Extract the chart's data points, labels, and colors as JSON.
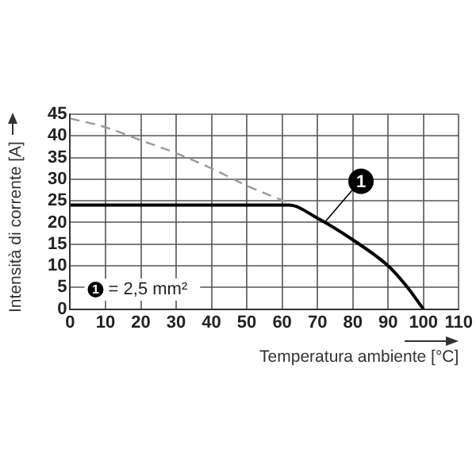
{
  "chart_data": {
    "type": "line",
    "xlabel": "Temperatura ambiente [°C]",
    "ylabel": "Intensità di corrente [A]",
    "xlim": [
      0,
      110
    ],
    "xticks": [
      0,
      10,
      20,
      30,
      40,
      50,
      60,
      70,
      80,
      90,
      100,
      110
    ],
    "ylim": [
      0,
      45
    ],
    "yticks": [
      0,
      5,
      10,
      15,
      20,
      25,
      30,
      35,
      40,
      45
    ],
    "grid": true,
    "legend": false,
    "marker": "none",
    "series": [
      {
        "color": "#999999",
        "line_style": "dashed",
        "x": [
          0,
          10,
          20,
          30,
          40,
          50,
          62
        ],
        "values": [
          44,
          42,
          39,
          36,
          32.5,
          28.5,
          24.5
        ]
      },
      {
        "color": "#000000",
        "line_style": "solid",
        "x": [
          0,
          62,
          70,
          80,
          90,
          95,
          100
        ],
        "values": [
          24,
          24,
          21,
          16,
          10,
          5.5,
          0
        ]
      }
    ],
    "annotations": [
      {
        "text": "1",
        "x": 72,
        "y": 20
      },
      "1 = 2,5 mm²"
    ]
  }
}
